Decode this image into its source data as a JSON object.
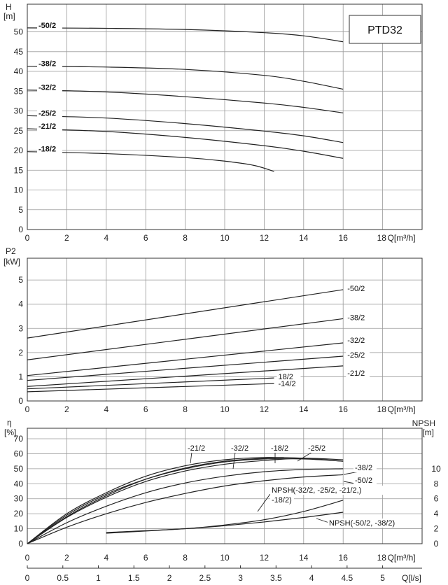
{
  "chart_data": [
    {
      "id": "head",
      "type": "line",
      "model_label": "PTD32",
      "ylabel_line1": "H",
      "ylabel_line2": "[m]",
      "xlabel": "Q[m³/h]",
      "xlim": [
        0,
        18
      ],
      "ylim": [
        0,
        55
      ],
      "x_ticks": [
        0,
        2,
        4,
        6,
        8,
        10,
        12,
        14,
        16,
        18
      ],
      "y_ticks": [
        0,
        5,
        10,
        15,
        20,
        25,
        30,
        35,
        40,
        45,
        50
      ],
      "grid": true,
      "series": [
        {
          "name": "-50/2",
          "x": [
            0,
            4,
            8,
            12,
            14,
            16
          ],
          "y": [
            51,
            50.9,
            50.6,
            49.8,
            49,
            47.5
          ]
        },
        {
          "name": "-38/2",
          "x": [
            0,
            4,
            8,
            12,
            14,
            16
          ],
          "y": [
            41.3,
            41.1,
            40.5,
            39,
            37.5,
            35.5
          ]
        },
        {
          "name": "-32/2",
          "x": [
            0,
            4,
            8,
            12,
            14,
            16
          ],
          "y": [
            35.3,
            34.8,
            33.6,
            32,
            30.9,
            29.5
          ]
        },
        {
          "name": "-25/2",
          "x": [
            0,
            4,
            8,
            12,
            14,
            16
          ],
          "y": [
            28.8,
            28.2,
            26.8,
            24.9,
            23.7,
            22
          ]
        },
        {
          "name": "-21/2",
          "x": [
            0,
            4,
            8,
            12,
            14,
            16
          ],
          "y": [
            25.5,
            24.8,
            23.3,
            21.2,
            19.8,
            18
          ]
        },
        {
          "name": "-18/2",
          "x": [
            0,
            4,
            8,
            10,
            11.5,
            12.5
          ],
          "y": [
            19.7,
            19.2,
            18.2,
            17.3,
            16.2,
            14.7
          ]
        }
      ]
    },
    {
      "id": "power",
      "type": "line",
      "ylabel_line1": "P2",
      "ylabel_line2": "[kW]",
      "xlabel": "Q[m³/h]",
      "xlim": [
        0,
        18
      ],
      "ylim": [
        0,
        5.6
      ],
      "x_ticks": [
        0,
        2,
        4,
        6,
        8,
        10,
        12,
        14,
        16,
        18
      ],
      "y_ticks": [
        0,
        1,
        2,
        3,
        4,
        5
      ],
      "grid": true,
      "series": [
        {
          "name": "-50/2",
          "x": [
            0,
            16
          ],
          "y": [
            2.6,
            4.6
          ]
        },
        {
          "name": "-38/2",
          "x": [
            0,
            16
          ],
          "y": [
            1.7,
            3.4
          ]
        },
        {
          "name": "-32/2",
          "x": [
            0,
            16
          ],
          "y": [
            1.05,
            2.4
          ]
        },
        {
          "name": "-25/2",
          "x": [
            0,
            16
          ],
          "y": [
            0.85,
            1.85
          ]
        },
        {
          "name": "-21/2",
          "x": [
            0,
            16
          ],
          "y": [
            0.6,
            1.45
          ]
        },
        {
          "name": "18/2",
          "x": [
            0,
            12.5
          ],
          "y": [
            0.5,
            0.95
          ]
        },
        {
          "name": "-14/2",
          "x": [
            0,
            12.5
          ],
          "y": [
            0.38,
            0.72
          ]
        }
      ]
    },
    {
      "id": "efficiency",
      "type": "line",
      "ylabel_line1": "η",
      "ylabel_line2": "[%]",
      "ylabel_right_line1": "NPSH",
      "ylabel_right_line2": "[m]",
      "xlabel": "Q[m³/h]",
      "xlabel_secondary": "Q[l/s]",
      "xlim": [
        0,
        18
      ],
      "ylim": [
        0,
        75
      ],
      "x_ticks": [
        0,
        2,
        4,
        6,
        8,
        10,
        12,
        14,
        16,
        18
      ],
      "y_ticks": [
        0,
        10,
        20,
        30,
        40,
        50,
        60,
        70
      ],
      "y_right_ticks": [
        0,
        2,
        4,
        6,
        8,
        10
      ],
      "x_secondary_ticks": [
        "0",
        "0.5",
        "1",
        "1.5",
        "2",
        "2.5",
        "3",
        "3.5",
        "4",
        "4.5",
        "5"
      ],
      "grid": true,
      "series": [
        {
          "name": "-21/2",
          "x": [
            0,
            2,
            4,
            6,
            8,
            10,
            12,
            14,
            16
          ],
          "y": [
            0,
            20,
            34,
            45,
            52,
            56,
            57.5,
            57,
            55
          ]
        },
        {
          "name": "-32/2",
          "x": [
            0,
            2,
            4,
            6,
            8,
            10,
            12,
            14,
            16
          ],
          "y": [
            0,
            19,
            33,
            43,
            50,
            54.5,
            56.5,
            56.5,
            55
          ]
        },
        {
          "name": "-18/2",
          "x": [
            0,
            2,
            4,
            6,
            8,
            10,
            12,
            13
          ],
          "y": [
            0,
            18,
            32,
            43,
            50.5,
            55,
            57,
            57.5
          ]
        },
        {
          "name": "-25/2",
          "x": [
            0,
            2,
            4,
            6,
            8,
            10,
            12,
            14,
            16
          ],
          "y": [
            0,
            17.5,
            31,
            41.5,
            48.5,
            53,
            55.5,
            57,
            56
          ]
        },
        {
          "name": "-38/2",
          "x": [
            0,
            2,
            4,
            6,
            8,
            10,
            12,
            14,
            16
          ],
          "y": [
            0,
            14,
            25,
            34,
            40.5,
            45,
            48,
            49.5,
            50
          ]
        },
        {
          "name": "-50/2",
          "x": [
            0,
            2,
            4,
            6,
            8,
            10,
            12,
            14,
            16
          ],
          "y": [
            0,
            11,
            20,
            27.5,
            33.5,
            38.5,
            42,
            44.5,
            46
          ]
        },
        {
          "name": "NPSH(-32/2, -25/2, -21/2,) -18/2)",
          "axis": "right",
          "x": [
            4,
            8,
            10,
            12,
            14,
            16
          ],
          "y": [
            1.5,
            2,
            2.5,
            3.2,
            4.3,
            5.8
          ]
        },
        {
          "name": "NPSH(-50/2, -38/2)",
          "axis": "right",
          "x": [
            4,
            8,
            10,
            12,
            14,
            16
          ],
          "y": [
            1.4,
            2,
            2.4,
            2.9,
            3.5,
            4.2
          ]
        }
      ],
      "npsh_label_line1": "NPSH(-32/2, -25/2, -21/2,)",
      "npsh_label_line2": "-18/2)",
      "npsh_label_b": "NPSH(-50/2, -38/2)"
    }
  ]
}
